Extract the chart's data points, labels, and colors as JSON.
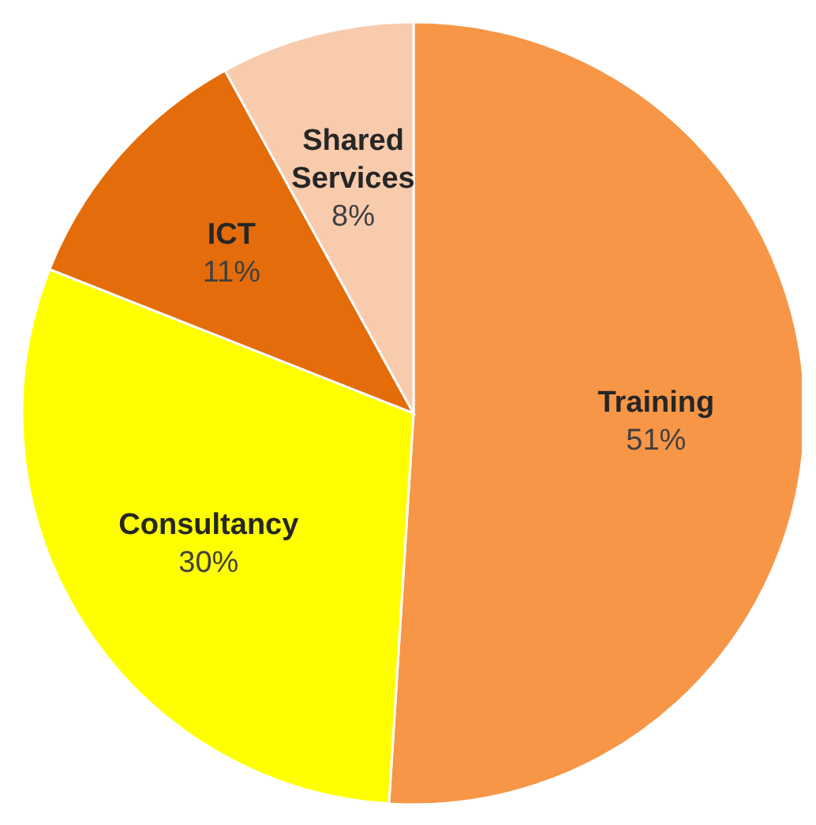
{
  "chart_data": {
    "type": "pie",
    "categories": [
      "Training",
      "Consultancy",
      "ICT",
      "Shared Services"
    ],
    "values": [
      51,
      30,
      11,
      8
    ],
    "colors": [
      "#f79646",
      "#ffff00",
      "#e46c0a",
      "#f8cbad"
    ],
    "value_labels": [
      "51%",
      "30%",
      "11%",
      "8%"
    ],
    "legend": false
  }
}
